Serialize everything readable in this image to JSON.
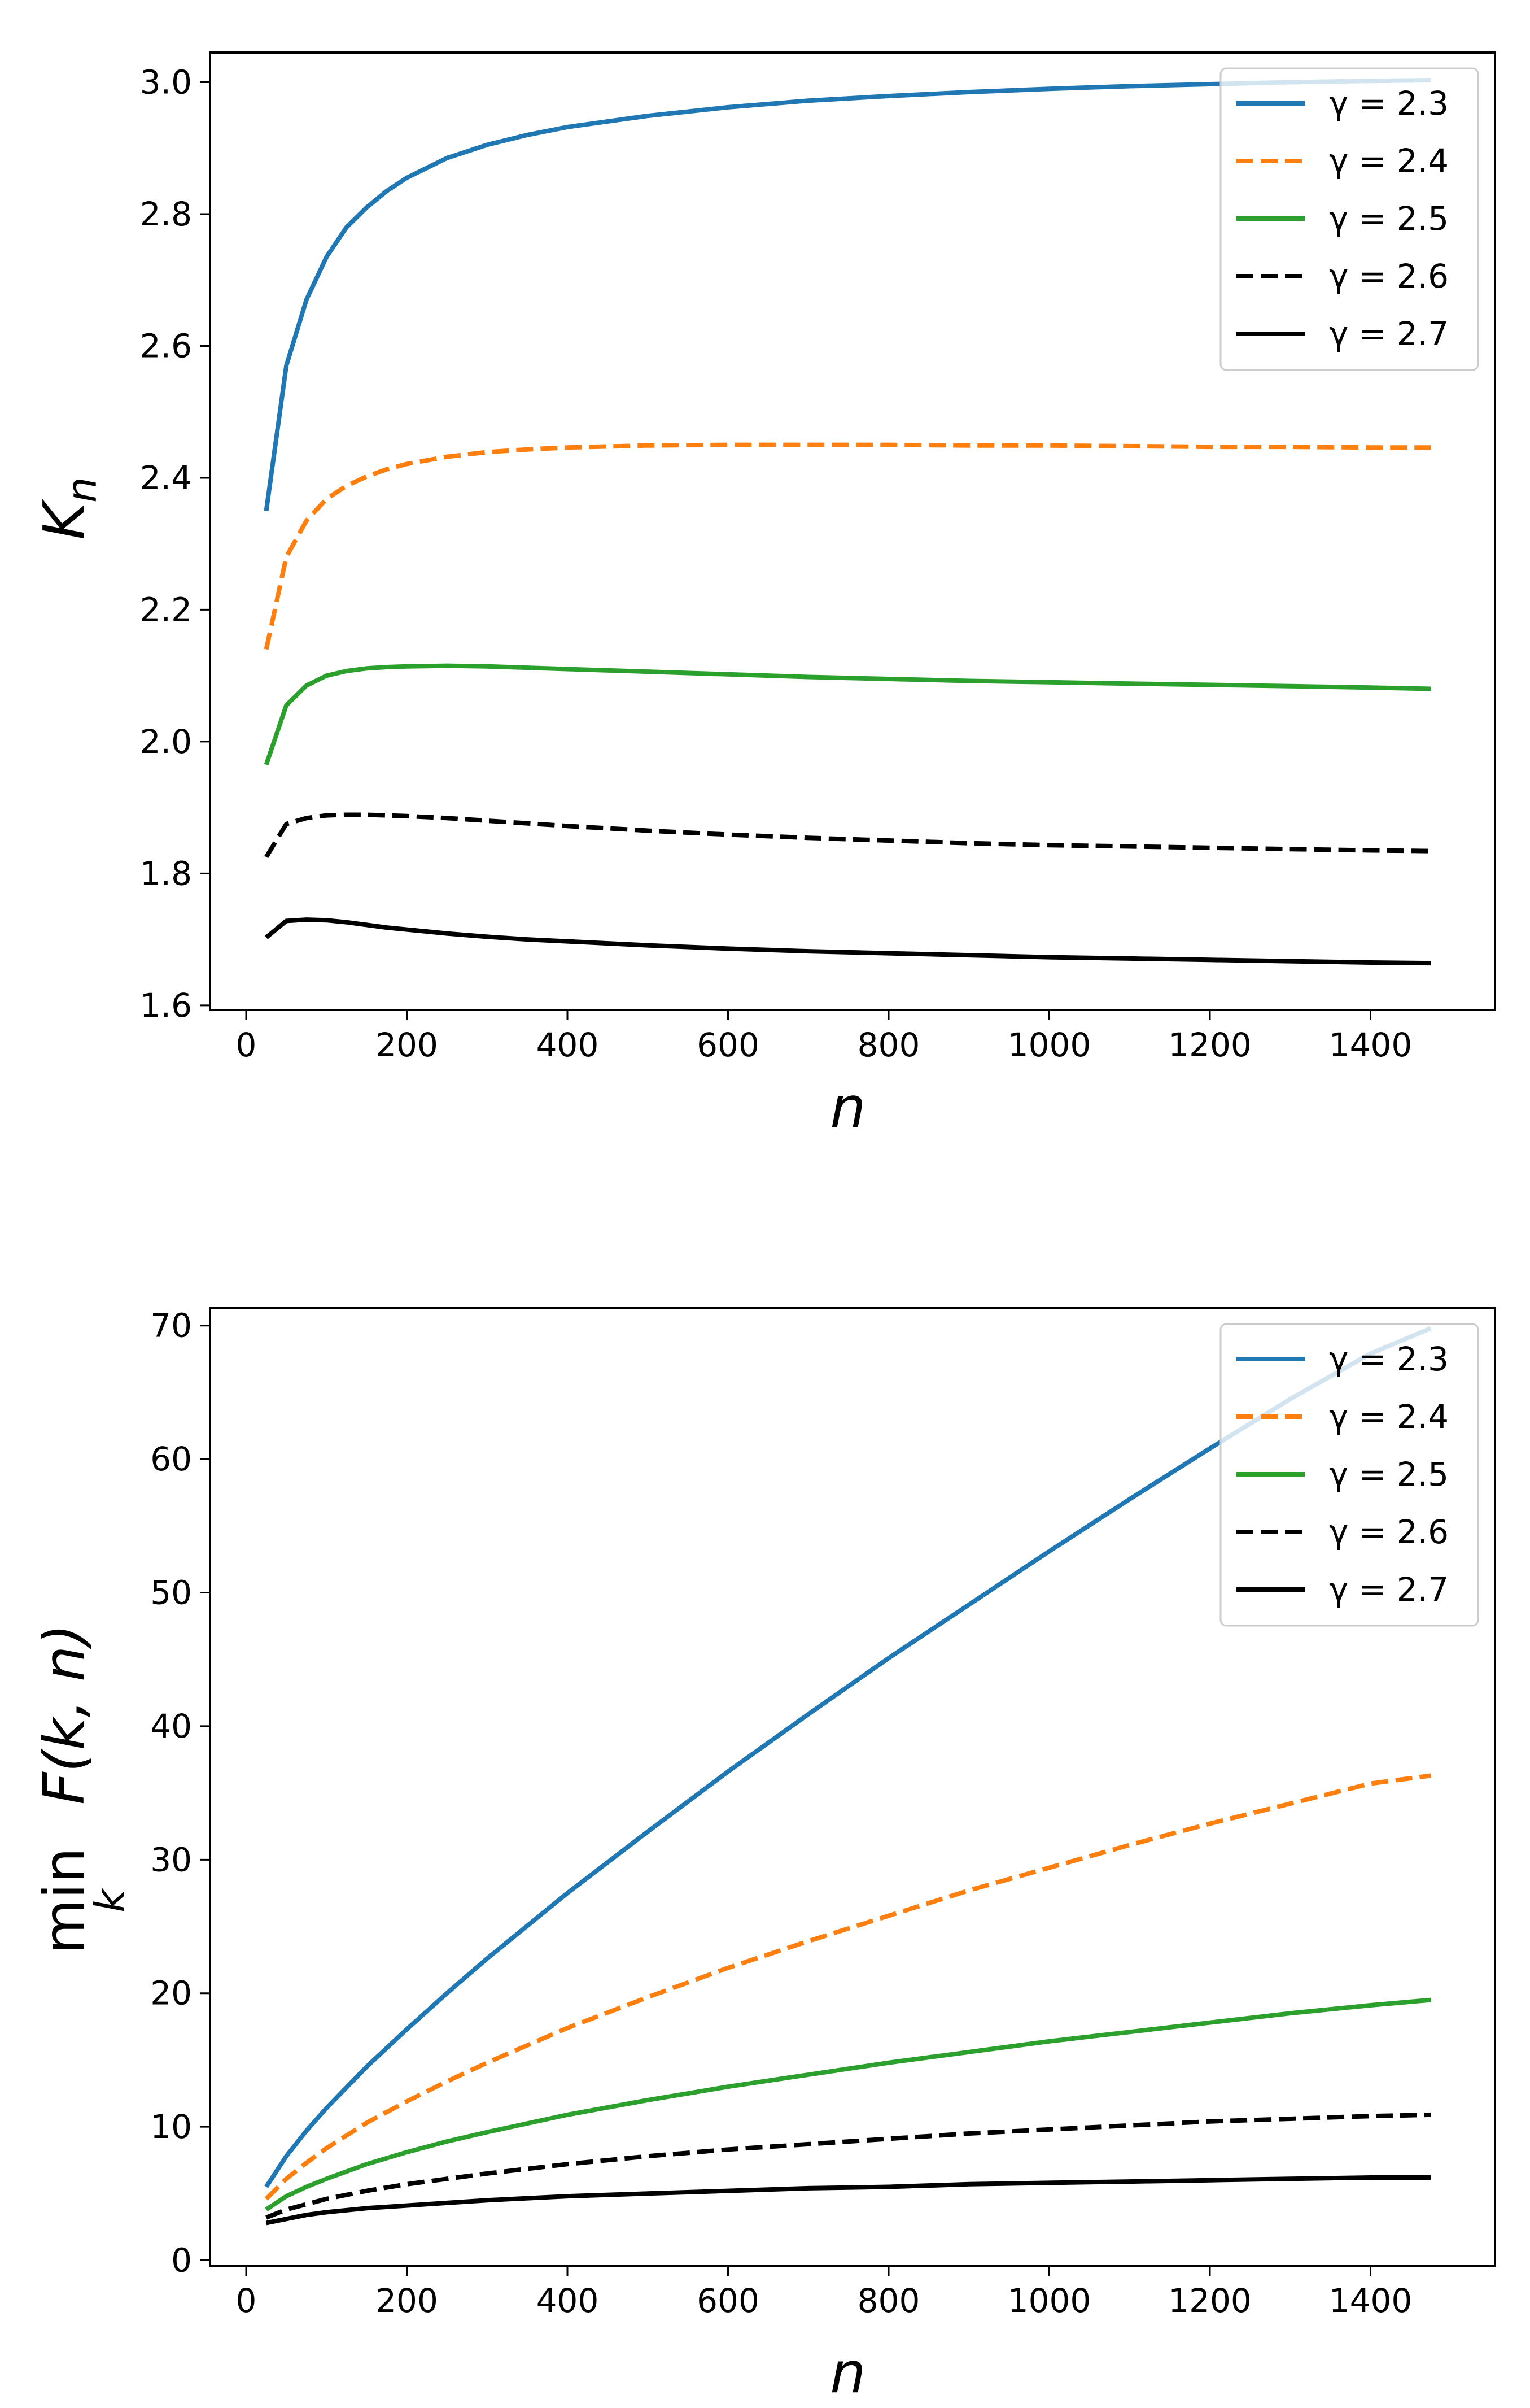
{
  "chart_data": [
    {
      "type": "line",
      "id": "top",
      "title": "",
      "xlabel": "n",
      "ylabel": "K",
      "ylabel_sub": "n",
      "xlim": [
        -45,
        1555
      ],
      "ylim": [
        1.593,
        3.045
      ],
      "xticks": [
        0,
        200,
        400,
        600,
        800,
        1000,
        1200,
        1400
      ],
      "xtick_labels": [
        "0",
        "200",
        "400",
        "600",
        "800",
        "1000",
        "1200",
        "1400"
      ],
      "yticks": [
        1.6,
        1.8,
        2.0,
        2.2,
        2.4,
        2.6,
        2.8,
        3.0
      ],
      "ytick_labels": [
        "1.6",
        "1.8",
        "2.0",
        "2.2",
        "2.4",
        "2.6",
        "2.8",
        "3.0"
      ],
      "legend": "top-right",
      "grid": false,
      "x": [
        25,
        50,
        75,
        100,
        125,
        150,
        175,
        200,
        250,
        300,
        350,
        400,
        500,
        600,
        700,
        800,
        900,
        1000,
        1100,
        1200,
        1300,
        1400,
        1475
      ],
      "series": [
        {
          "name": "γ = 2.3",
          "color": "#1f77b4",
          "dash": "solid",
          "values": [
            2.35,
            2.57,
            2.67,
            2.735,
            2.78,
            2.81,
            2.835,
            2.855,
            2.885,
            2.905,
            2.92,
            2.932,
            2.949,
            2.962,
            2.972,
            2.979,
            2.985,
            2.99,
            2.994,
            2.997,
            3.0,
            3.002,
            3.003
          ]
        },
        {
          "name": "γ = 2.4",
          "color": "#ff7f0e",
          "dash": "dashed",
          "values": [
            2.14,
            2.28,
            2.335,
            2.368,
            2.388,
            2.402,
            2.413,
            2.421,
            2.432,
            2.439,
            2.443,
            2.446,
            2.449,
            2.45,
            2.45,
            2.45,
            2.449,
            2.449,
            2.448,
            2.447,
            2.447,
            2.446,
            2.446
          ]
        },
        {
          "name": "γ = 2.5",
          "color": "#2ca02c",
          "dash": "solid",
          "values": [
            1.965,
            2.055,
            2.085,
            2.1,
            2.107,
            2.111,
            2.113,
            2.114,
            2.115,
            2.114,
            2.112,
            2.11,
            2.106,
            2.102,
            2.098,
            2.095,
            2.092,
            2.09,
            2.088,
            2.086,
            2.084,
            2.082,
            2.08
          ]
        },
        {
          "name": "γ = 2.6",
          "color": "#000000",
          "dash": "dashed",
          "values": [
            1.825,
            1.875,
            1.884,
            1.888,
            1.889,
            1.889,
            1.888,
            1.887,
            1.884,
            1.88,
            1.876,
            1.872,
            1.865,
            1.859,
            1.854,
            1.85,
            1.846,
            1.843,
            1.841,
            1.839,
            1.837,
            1.835,
            1.834
          ]
        },
        {
          "name": "γ = 2.7",
          "color": "#000000",
          "dash": "solid",
          "values": [
            1.703,
            1.728,
            1.73,
            1.729,
            1.726,
            1.722,
            1.718,
            1.715,
            1.709,
            1.704,
            1.7,
            1.697,
            1.691,
            1.686,
            1.682,
            1.679,
            1.676,
            1.673,
            1.671,
            1.669,
            1.667,
            1.665,
            1.664
          ]
        }
      ]
    },
    {
      "type": "line",
      "id": "bottom",
      "title": "",
      "xlabel": "n",
      "ylabel": "min",
      "ylabel_sub": "k",
      "ylabel_expr": "F(k, n)",
      "xlim": [
        -45,
        1555
      ],
      "ylim": [
        -0.4,
        71.3
      ],
      "xticks": [
        0,
        200,
        400,
        600,
        800,
        1000,
        1200,
        1400
      ],
      "xtick_labels": [
        "0",
        "200",
        "400",
        "600",
        "800",
        "1000",
        "1200",
        "1400"
      ],
      "yticks": [
        0,
        10,
        20,
        30,
        40,
        50,
        60,
        70
      ],
      "ytick_labels": [
        "0",
        "10",
        "20",
        "30",
        "40",
        "50",
        "60",
        "70"
      ],
      "legend": "top-right",
      "grid": false,
      "x": [
        25,
        50,
        75,
        100,
        150,
        200,
        250,
        300,
        400,
        500,
        600,
        700,
        800,
        900,
        1000,
        1100,
        1200,
        1300,
        1400,
        1475
      ],
      "series": [
        {
          "name": "γ = 2.3",
          "color": "#1f77b4",
          "dash": "solid",
          "values": [
            5.5,
            7.8,
            9.7,
            11.4,
            14.5,
            17.3,
            20.0,
            22.6,
            27.5,
            32.1,
            36.6,
            40.9,
            45.1,
            49.1,
            53.1,
            57.0,
            60.8,
            64.5,
            67.9,
            69.8
          ]
        },
        {
          "name": "γ = 2.4",
          "color": "#ff7f0e",
          "dash": "dashed",
          "values": [
            4.6,
            6.1,
            7.3,
            8.4,
            10.3,
            11.9,
            13.4,
            14.8,
            17.4,
            19.7,
            21.9,
            23.9,
            25.8,
            27.7,
            29.4,
            31.1,
            32.7,
            34.2,
            35.7,
            36.3
          ]
        },
        {
          "name": "γ = 2.5",
          "color": "#2ca02c",
          "dash": "solid",
          "values": [
            3.8,
            4.8,
            5.5,
            6.1,
            7.2,
            8.1,
            8.9,
            9.6,
            10.9,
            12.0,
            13.0,
            13.9,
            14.8,
            15.6,
            16.4,
            17.1,
            17.8,
            18.5,
            19.1,
            19.5
          ]
        },
        {
          "name": "γ = 2.6",
          "color": "#000000",
          "dash": "dashed",
          "values": [
            3.2,
            3.8,
            4.2,
            4.6,
            5.2,
            5.7,
            6.1,
            6.5,
            7.2,
            7.8,
            8.3,
            8.7,
            9.1,
            9.5,
            9.8,
            10.1,
            10.4,
            10.6,
            10.8,
            10.9
          ]
        },
        {
          "name": "γ = 2.7",
          "color": "#000000",
          "dash": "solid",
          "values": [
            2.8,
            3.1,
            3.4,
            3.6,
            3.9,
            4.1,
            4.3,
            4.5,
            4.8,
            5.0,
            5.2,
            5.4,
            5.5,
            5.7,
            5.8,
            5.9,
            6.0,
            6.1,
            6.2,
            6.2
          ]
        }
      ]
    }
  ]
}
